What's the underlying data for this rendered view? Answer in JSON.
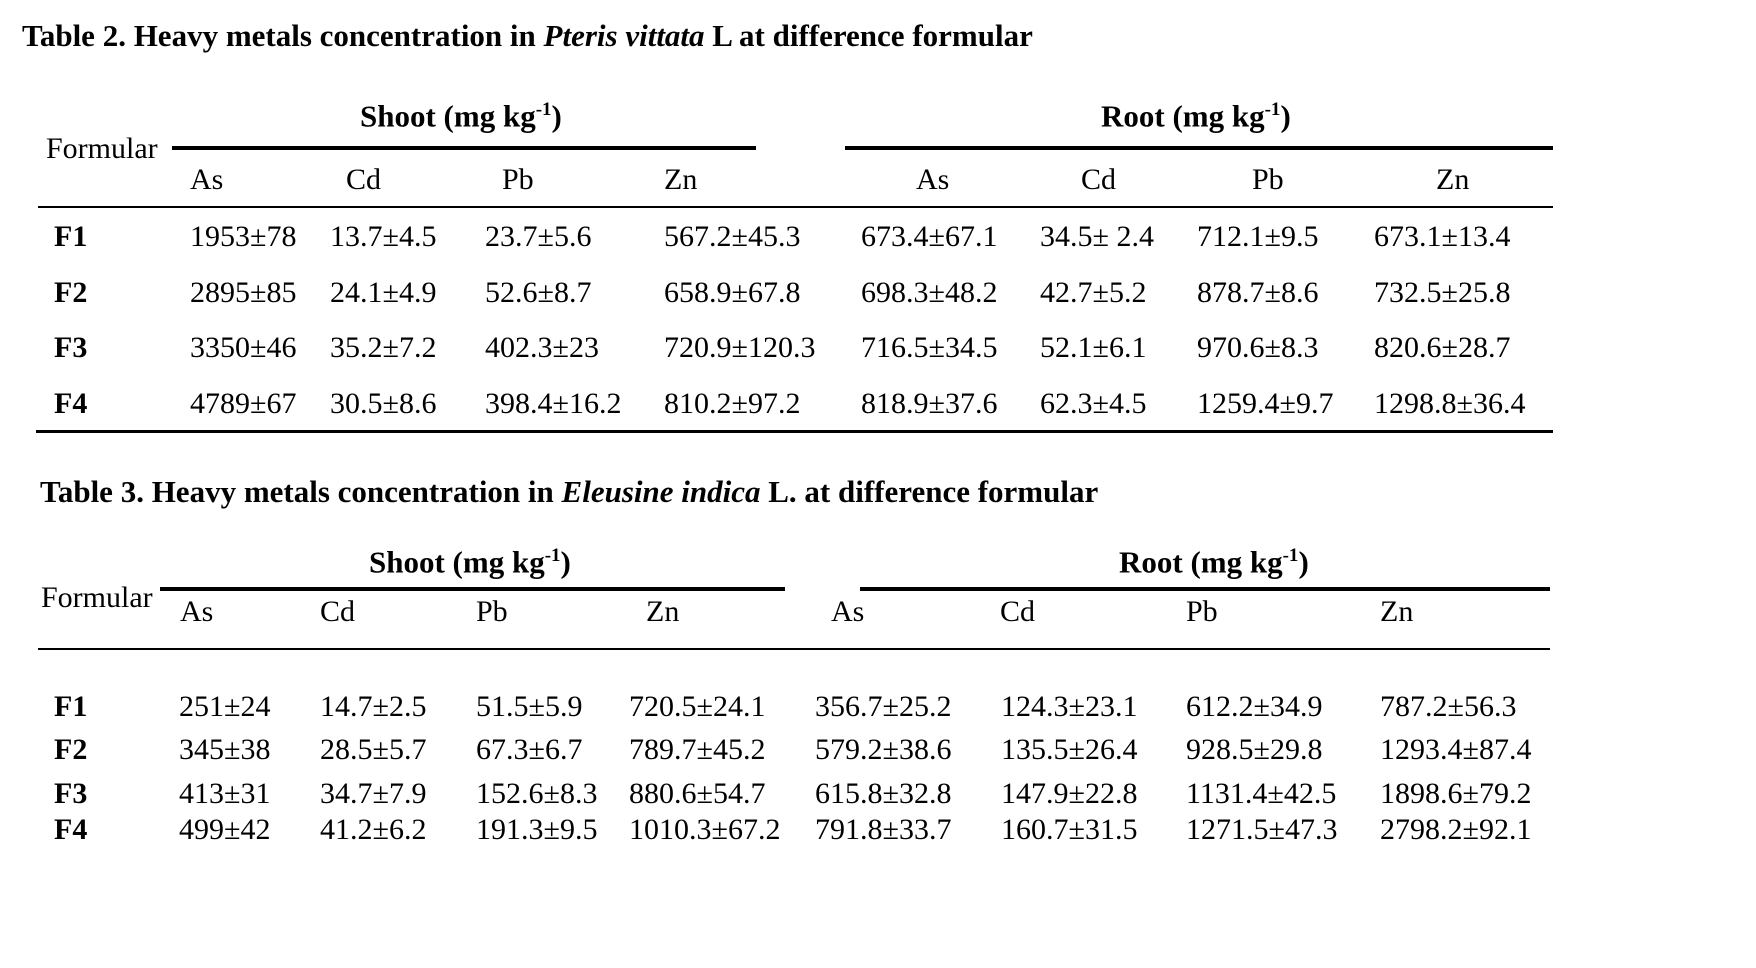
{
  "table2": {
    "caption_prefix": "Table 2. Heavy metals concentration in ",
    "caption_species": "Pteris vittata",
    "caption_suffix": " L at difference formular",
    "formular_label": "Formular",
    "shoot_label": "Shoot (mg kg",
    "root_label": "Root (mg kg",
    "unit_exp": "-1",
    "close_paren": ")",
    "columns": [
      "As",
      "Cd",
      "Pb",
      "Zn",
      "As",
      "Cd",
      "Pb",
      "Zn"
    ],
    "rows": [
      {
        "label": "F1",
        "values": [
          "1953±78",
          "13.7±4.5",
          "23.7±5.6",
          "567.2±45.3",
          "673.4±67.1",
          "34.5± 2.4",
          "712.1±9.5",
          "673.1±13.4"
        ]
      },
      {
        "label": "F2",
        "values": [
          "2895±85",
          "24.1±4.9",
          "52.6±8.7",
          "658.9±67.8",
          "698.3±48.2",
          "42.7±5.2",
          "878.7±8.6",
          "732.5±25.8"
        ]
      },
      {
        "label": "F3",
        "values": [
          "3350±46",
          "35.2±7.2",
          "402.3±23",
          "720.9±120.3",
          "716.5±34.5",
          "52.1±6.1",
          "970.6±8.3",
          "820.6±28.7"
        ]
      },
      {
        "label": "F4",
        "values": [
          "4789±67",
          "30.5±8.6",
          "398.4±16.2",
          "810.2±97.2",
          "818.9±37.6",
          "62.3±4.5",
          "1259.4±9.7",
          "1298.8±36.4"
        ]
      }
    ]
  },
  "table3": {
    "caption_prefix": "Table 3. Heavy metals concentration in ",
    "caption_species": "Eleusine indica",
    "caption_suffix": " L. at difference formular",
    "formular_label": "Formular",
    "shoot_label": "Shoot (mg kg",
    "root_label": "Root (mg kg",
    "unit_exp": "-1",
    "close_paren": ")",
    "columns": [
      "As",
      "Cd",
      "Pb",
      "Zn",
      "As",
      "Cd",
      "Pb",
      "Zn"
    ],
    "rows": [
      {
        "label": "F1",
        "values": [
          "251±24",
          "14.7±2.5",
          "51.5±5.9",
          "720.5±24.1",
          "356.7±25.2",
          "124.3±23.1",
          "612.2±34.9",
          "787.2±56.3"
        ]
      },
      {
        "label": "F2",
        "values": [
          "345±38",
          "28.5±5.7",
          "67.3±6.7",
          "789.7±45.2",
          "579.2±38.6",
          "135.5±26.4",
          "928.5±29.8",
          "1293.4±87.4"
        ]
      },
      {
        "label": "F3",
        "values": [
          "413±31",
          "34.7±7.9",
          "152.6±8.3",
          "880.6±54.7",
          "615.8±32.8",
          "147.9±22.8",
          "1131.4±42.5",
          "1898.6±79.2"
        ]
      },
      {
        "label": "F4",
        "values": [
          "499±42",
          "41.2±6.2",
          "191.3±9.5",
          "1010.3±67.2",
          "791.8±33.7",
          "160.7±31.5",
          "1271.5±47.3",
          "2798.2±92.1"
        ]
      }
    ]
  }
}
